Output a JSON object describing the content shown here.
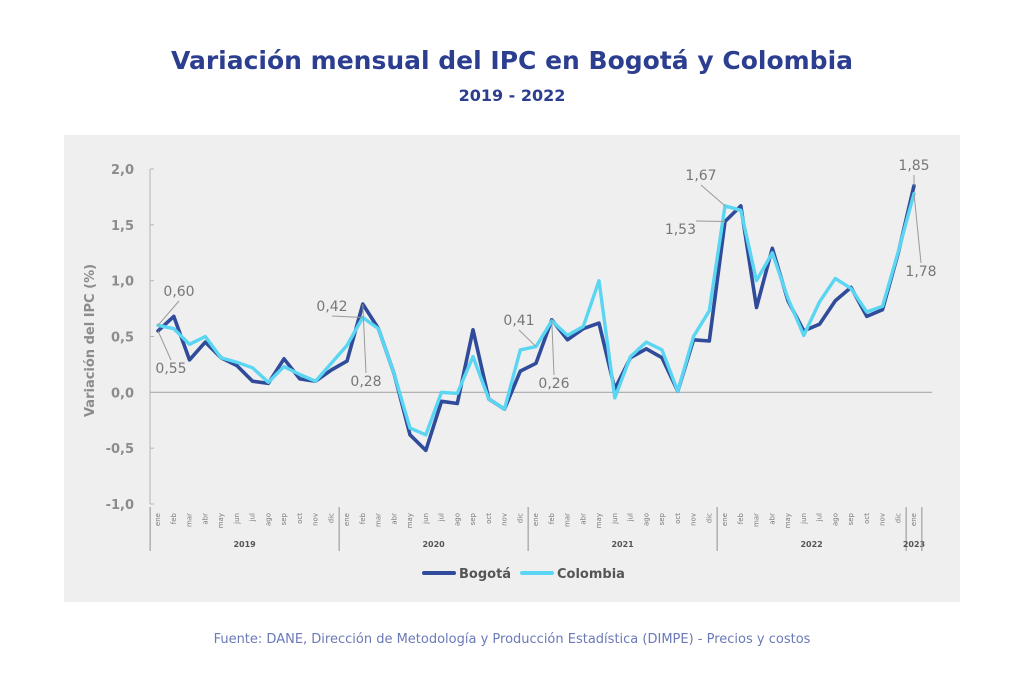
{
  "title": "Variación mensual del IPC en Bogotá y Colombia",
  "subtitle": "2019 - 2022",
  "source": "Fuente: DANE, Dirección de Metodología y Producción Estadística (DIMPE) - Precios y costos",
  "chart_data": {
    "type": "line",
    "ylabel": "Variación del IPC (%)",
    "xlabel": "",
    "ylim": [
      -1.0,
      2.0
    ],
    "yticks": [
      "2,0",
      "1,5",
      "1,0",
      "0,5",
      "0,0",
      "-0,5",
      "-1,0"
    ],
    "grid": false,
    "legend": "bottom",
    "months": [
      "ene",
      "feb",
      "mar",
      "abr",
      "may",
      "jun",
      "jul",
      "ago",
      "sep",
      "oct",
      "nov",
      "dic",
      "ene",
      "feb",
      "mar",
      "abr",
      "may",
      "jun",
      "jul",
      "ago",
      "sep",
      "oct",
      "nov",
      "dic",
      "ene",
      "feb",
      "mar",
      "abr",
      "may",
      "jun",
      "jul",
      "ago",
      "sep",
      "oct",
      "nov",
      "dic",
      "ene",
      "feb",
      "mar",
      "abr",
      "may",
      "jun",
      "jul",
      "ago",
      "sep",
      "oct",
      "nov",
      "dic",
      "ene"
    ],
    "years": [
      "2019",
      "2020",
      "2021",
      "2022",
      "2023"
    ],
    "series": [
      {
        "name": "Bogotá",
        "color": "#2f4b9a",
        "values": [
          0.55,
          0.68,
          0.29,
          0.45,
          0.31,
          0.24,
          0.1,
          0.08,
          0.3,
          0.12,
          0.1,
          0.2,
          0.28,
          0.79,
          0.57,
          0.16,
          -0.38,
          -0.52,
          -0.08,
          -0.1,
          0.56,
          -0.06,
          -0.15,
          0.19,
          0.26,
          0.65,
          0.47,
          0.57,
          0.62,
          0.03,
          0.31,
          0.39,
          0.31,
          0.01,
          0.47,
          0.46,
          1.53,
          1.67,
          0.76,
          1.29,
          0.82,
          0.55,
          0.61,
          0.82,
          0.94,
          0.68,
          0.74,
          1.25,
          1.85
        ]
      },
      {
        "name": "Colombia",
        "color": "#5ad6f2",
        "values": [
          0.6,
          0.57,
          0.43,
          0.5,
          0.31,
          0.27,
          0.22,
          0.09,
          0.23,
          0.16,
          0.1,
          0.26,
          0.42,
          0.67,
          0.57,
          0.16,
          -0.32,
          -0.38,
          0.0,
          -0.01,
          0.32,
          -0.06,
          -0.15,
          0.38,
          0.41,
          0.64,
          0.51,
          0.59,
          1.0,
          -0.05,
          0.32,
          0.45,
          0.38,
          0.01,
          0.5,
          0.73,
          1.67,
          1.63,
          1.0,
          1.25,
          0.84,
          0.51,
          0.81,
          1.02,
          0.93,
          0.72,
          0.77,
          1.26,
          1.78
        ]
      }
    ],
    "annotations": [
      "0,60",
      "0,55",
      "0,42",
      "0,28",
      "0,41",
      "0,26",
      "1,67",
      "1,53",
      "1,85",
      "1,78"
    ]
  }
}
